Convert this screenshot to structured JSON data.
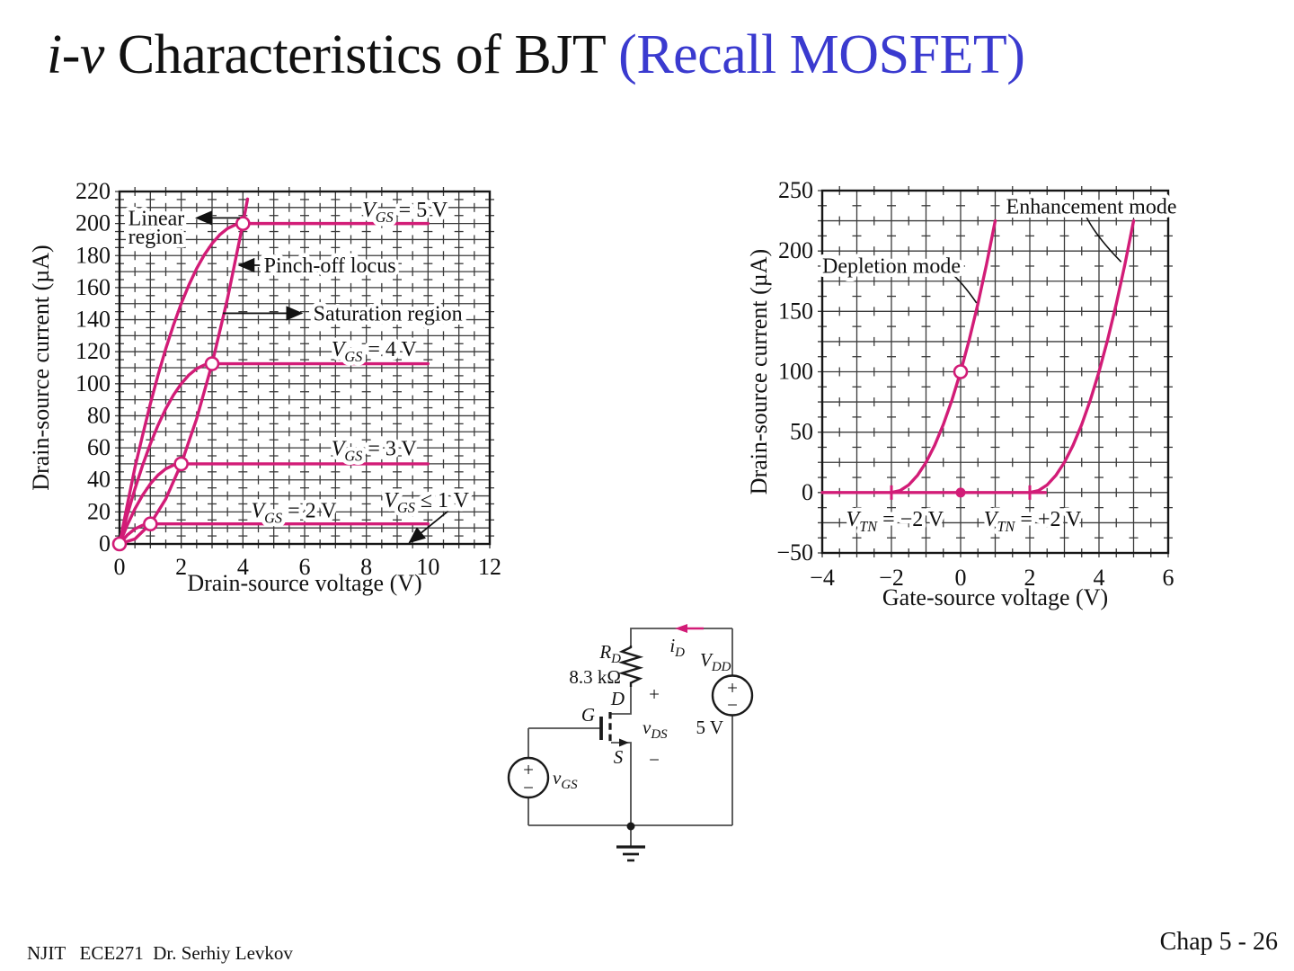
{
  "slide": {
    "title_italic": "i-v",
    "title_main": " Characteristics of BJT ",
    "title_accent": "(Recall MOSFET)",
    "footer_left": "NJIT   ECE271  Dr. Serhiy Levkov",
    "footer_right": "Chap 5 - 26"
  },
  "colors": {
    "curve": "#d21c77",
    "grid": "#3a3a3a",
    "border": "#161616",
    "wire": "#4d4d4d",
    "component": "#1a1a1a",
    "accent": "#3a3acf"
  },
  "circuit": {
    "plus": "+",
    "minus": "−",
    "rd_base": "R",
    "rd_sub": "D",
    "rd_value": "8.3 kΩ",
    "id_base": "i",
    "id_sub": "D",
    "vdd_base": "V",
    "vdd_sub": "DD",
    "vdd_value": "5 V",
    "vgs_base": "v",
    "vgs_sub": "GS",
    "vds_base": "v",
    "vds_sub": "DS",
    "drain": "D",
    "gate": "G",
    "source": "S"
  },
  "chart_data": [
    {
      "type": "line",
      "name": "mosfet-output-characteristics",
      "title": "",
      "xlabel": "Drain-source voltage (V)",
      "ylabel": "Drain-source current (µA)",
      "xlim": [
        0,
        12
      ],
      "ylim": [
        0,
        220
      ],
      "x_major": 1,
      "y_major": 10,
      "grid": true,
      "legend_position": "none",
      "x_ticks": [
        {
          "v": 0,
          "t": "0"
        },
        {
          "v": 2,
          "t": "2"
        },
        {
          "v": 4,
          "t": "4"
        },
        {
          "v": 6,
          "t": "6"
        },
        {
          "v": 8,
          "t": "8"
        },
        {
          "v": 10,
          "t": "10"
        },
        {
          "v": 12,
          "t": "12"
        }
      ],
      "y_ticks": [
        {
          "v": 0,
          "t": "0"
        },
        {
          "v": 20,
          "t": "20"
        },
        {
          "v": 40,
          "t": "40"
        },
        {
          "v": 60,
          "t": "60"
        },
        {
          "v": 80,
          "t": "80"
        },
        {
          "v": 100,
          "t": "100"
        },
        {
          "v": 120,
          "t": "120"
        },
        {
          "v": 140,
          "t": "140"
        },
        {
          "v": 160,
          "t": "160"
        },
        {
          "v": 180,
          "t": "180"
        },
        {
          "v": 200,
          "t": "200"
        },
        {
          "v": 220,
          "t": "220"
        }
      ],
      "series": [
        {
          "name": "VGS=5V",
          "points": [
            [
              0,
              0
            ],
            [
              0.25,
              24.2
            ],
            [
              0.5,
              47.7
            ],
            [
              0.75,
              68.0
            ],
            [
              1,
              87.5
            ],
            [
              1.25,
              105.5
            ],
            [
              1.5,
              121.9
            ],
            [
              1.75,
              136.7
            ],
            [
              2,
              150
            ],
            [
              2.25,
              161.7
            ],
            [
              2.5,
              171.9
            ],
            [
              2.75,
              180.5
            ],
            [
              3,
              187.5
            ],
            [
              3.25,
              193.0
            ],
            [
              3.5,
              196.9
            ],
            [
              3.75,
              199.2
            ],
            [
              4,
              200
            ],
            [
              10,
              200
            ]
          ]
        },
        {
          "name": "VGS=4V",
          "points": [
            [
              0,
              0
            ],
            [
              0.25,
              18.0
            ],
            [
              0.5,
              34.4
            ],
            [
              0.75,
              49.2
            ],
            [
              1,
              62.5
            ],
            [
              1.25,
              74.2
            ],
            [
              1.5,
              84.4
            ],
            [
              1.75,
              93.0
            ],
            [
              2,
              100
            ],
            [
              2.25,
              105.5
            ],
            [
              2.5,
              109.4
            ],
            [
              2.75,
              111.7
            ],
            [
              3,
              112.5
            ],
            [
              10,
              112.5
            ]
          ]
        },
        {
          "name": "VGS=3V",
          "points": [
            [
              0,
              0
            ],
            [
              0.25,
              11.7
            ],
            [
              0.5,
              21.9
            ],
            [
              0.75,
              30.5
            ],
            [
              1,
              37.5
            ],
            [
              1.25,
              43.0
            ],
            [
              1.5,
              46.9
            ],
            [
              1.75,
              49.2
            ],
            [
              2,
              50
            ],
            [
              10,
              50
            ]
          ]
        },
        {
          "name": "VGS=2V",
          "points": [
            [
              0,
              0
            ],
            [
              0.25,
              5.5
            ],
            [
              0.5,
              9.4
            ],
            [
              0.75,
              11.7
            ],
            [
              1,
              12.5
            ],
            [
              10,
              12.5
            ]
          ]
        },
        {
          "name": "pinch-off-locus",
          "points": [
            [
              0,
              0
            ],
            [
              0.5,
              3.1
            ],
            [
              1,
              12.5
            ],
            [
              1.5,
              28.1
            ],
            [
              2,
              50
            ],
            [
              2.5,
              78.1
            ],
            [
              3,
              112.5
            ],
            [
              3.5,
              153.1
            ],
            [
              4,
              200
            ],
            [
              4.15,
              215.3
            ]
          ]
        }
      ],
      "open_markers": [
        [
          0,
          0
        ],
        [
          1,
          12.5
        ],
        [
          2,
          50
        ],
        [
          3,
          112.5
        ],
        [
          4,
          200
        ]
      ],
      "filled_markers": [],
      "tick_markers": [],
      "annotations": [
        {
          "segs": [
            [
              "i",
              "V"
            ],
            [
              "sub",
              "GS"
            ],
            [
              "n",
              " = 5 V"
            ]
          ],
          "x": 9.25,
          "y": 209,
          "anchor": "middle"
        },
        {
          "segs": [
            [
              "n",
              "Linear"
            ]
          ],
          "x": 0.28,
          "y": 203.5,
          "anchor": "start"
        },
        {
          "segs": [
            [
              "n",
              "region"
            ]
          ],
          "x": 0.28,
          "y": 192.0,
          "anchor": "start"
        },
        {
          "segs": [
            [
              "n",
              "Pinch-off locus"
            ]
          ],
          "x": 4.68,
          "y": 174,
          "anchor": "start"
        },
        {
          "segs": [
            [
              "n",
              "Saturation region"
            ]
          ],
          "x": 6.28,
          "y": 144,
          "anchor": "start"
        },
        {
          "segs": [
            [
              "i",
              "V"
            ],
            [
              "sub",
              "GS"
            ],
            [
              "n",
              " = 4 V"
            ]
          ],
          "x": 8.25,
          "y": 122,
          "anchor": "middle"
        },
        {
          "segs": [
            [
              "i",
              "V"
            ],
            [
              "sub",
              "GS"
            ],
            [
              "n",
              " = 3 V"
            ]
          ],
          "x": 8.25,
          "y": 60,
          "anchor": "middle"
        },
        {
          "segs": [
            [
              "i",
              "V"
            ],
            [
              "sub",
              "GS"
            ],
            [
              "n",
              " = 2 V"
            ]
          ],
          "x": 5.65,
          "y": 21,
          "anchor": "middle"
        },
        {
          "segs": [
            [
              "i",
              "V"
            ],
            [
              "sub",
              "GS"
            ],
            [
              "n",
              " ≤ 1 V"
            ]
          ],
          "x": 9.95,
          "y": 27.5,
          "anchor": "middle"
        }
      ],
      "arrows": [
        {
          "from": [
            3.9,
            203.5
          ],
          "to": [
            2.5,
            203.5
          ]
        },
        {
          "from": [
            4.55,
            174.0
          ],
          "to": [
            3.88,
            174.0
          ]
        },
        {
          "from": [
            3.35,
            144.0
          ],
          "to": [
            5.9,
            144.0
          ]
        },
        {
          "from": [
            10.65,
            20.5
          ],
          "to": [
            9.4,
            1.0
          ]
        }
      ],
      "leaders": []
    },
    {
      "type": "line",
      "name": "mosfet-transfer-characteristics",
      "title": "",
      "xlabel": "Gate-source voltage (V)",
      "ylabel": "Drain-source current (µA)",
      "xlim": [
        -4,
        6
      ],
      "ylim": [
        -50,
        250
      ],
      "x_major": 1,
      "y_major": 25,
      "grid": true,
      "legend_position": "none",
      "x_ticks": [
        {
          "v": -4,
          "t": "−4"
        },
        {
          "v": -2,
          "t": "−2"
        },
        {
          "v": 0,
          "t": "0"
        },
        {
          "v": 2,
          "t": "2"
        },
        {
          "v": 4,
          "t": "4"
        },
        {
          "v": 6,
          "t": "6"
        }
      ],
      "y_ticks": [
        {
          "v": -50,
          "t": "−50"
        },
        {
          "v": 0,
          "t": "0"
        },
        {
          "v": 50,
          "t": "50"
        },
        {
          "v": 100,
          "t": "100"
        },
        {
          "v": 150,
          "t": "150"
        },
        {
          "v": 200,
          "t": "200"
        },
        {
          "v": 250,
          "t": "250"
        }
      ],
      "series": [
        {
          "name": "cutoff-zero-line",
          "points": [
            [
              -4,
              0
            ],
            [
              2.45,
              0
            ]
          ]
        },
        {
          "name": "depletion-mode",
          "points": [
            [
              -2,
              0
            ],
            [
              -1.75,
              1.6
            ],
            [
              -1.5,
              6.3
            ],
            [
              -1.25,
              14.1
            ],
            [
              -1,
              25
            ],
            [
              -0.75,
              39.1
            ],
            [
              -0.5,
              56.3
            ],
            [
              -0.25,
              76.6
            ],
            [
              0,
              100
            ],
            [
              0.25,
              126.6
            ],
            [
              0.5,
              156.3
            ],
            [
              0.75,
              189.1
            ],
            [
              1,
              225
            ]
          ]
        },
        {
          "name": "enhancement-mode",
          "points": [
            [
              2,
              0
            ],
            [
              2.25,
              1.6
            ],
            [
              2.5,
              6.3
            ],
            [
              2.75,
              14.1
            ],
            [
              3,
              25
            ],
            [
              3.25,
              39.1
            ],
            [
              3.5,
              56.3
            ],
            [
              3.75,
              76.6
            ],
            [
              4,
              100
            ],
            [
              4.25,
              126.6
            ],
            [
              4.5,
              156.3
            ],
            [
              4.75,
              189.1
            ],
            [
              5,
              225
            ]
          ]
        }
      ],
      "open_markers": [
        [
          0,
          100
        ]
      ],
      "filled_markers": [
        [
          0,
          0
        ]
      ],
      "tick_markers": [
        [
          -2,
          0
        ],
        [
          2,
          0
        ]
      ],
      "annotations": [
        {
          "segs": [
            [
              "n",
              "Depletion mode"
            ]
          ],
          "x": -2.0,
          "y": 188,
          "anchor": "middle"
        },
        {
          "segs": [
            [
              "n",
              "Enhancement mode"
            ]
          ],
          "x": 3.78,
          "y": 237,
          "anchor": "middle"
        },
        {
          "segs": [
            [
              "i",
              "V"
            ],
            [
              "sub",
              "TN"
            ],
            [
              "n",
              " = −2 V"
            ]
          ],
          "x": -1.9,
          "y": -21.5,
          "anchor": "middle"
        },
        {
          "segs": [
            [
              "i",
              "V"
            ],
            [
              "sub",
              "TN"
            ],
            [
              "n",
              " = +2 V"
            ]
          ],
          "x": 2.08,
          "y": -21.5,
          "anchor": "middle"
        }
      ],
      "arrows": [],
      "leaders": [
        {
          "from": [
            -0.32,
            183
          ],
          "ctrl": [
            0.05,
            174
          ],
          "to": [
            0.46,
            157
          ]
        },
        {
          "from": [
            3.64,
            228
          ],
          "ctrl": [
            3.92,
            212
          ],
          "to": [
            4.64,
            191
          ]
        }
      ]
    }
  ]
}
